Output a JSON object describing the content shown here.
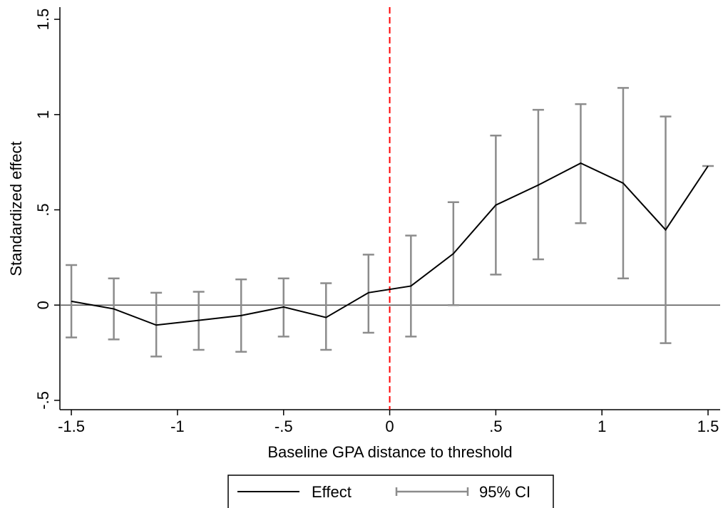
{
  "chart_data": {
    "type": "line",
    "x_label": "Baseline GPA distance to threshold",
    "y_label": "Standardized effect",
    "x": [
      -1.5,
      -1.3,
      -1.1,
      -0.9,
      -0.7,
      -0.5,
      -0.3,
      -0.1,
      0.1,
      0.3,
      0.5,
      0.7,
      0.9,
      1.1,
      1.3,
      1.5
    ],
    "series": [
      {
        "name": "Effect",
        "color": "#000000",
        "values": [
          0.02,
          -0.02,
          -0.105,
          -0.08,
          -0.055,
          -0.01,
          -0.065,
          0.065,
          0.1,
          0.27,
          0.525,
          0.63,
          0.745,
          0.64,
          0.395,
          0.73
        ]
      },
      {
        "name": "95% CI",
        "color": "#8c8c8c",
        "lower": [
          -0.17,
          -0.18,
          -0.27,
          -0.235,
          -0.245,
          -0.165,
          -0.235,
          -0.145,
          -0.165,
          0.0,
          0.16,
          0.24,
          0.43,
          0.14,
          -0.2,
          0.73
        ],
        "upper": [
          0.21,
          0.14,
          0.065,
          0.07,
          0.135,
          0.14,
          0.115,
          0.265,
          0.365,
          0.54,
          0.89,
          1.025,
          1.055,
          1.14,
          0.99,
          0.73
        ]
      }
    ],
    "xlim": [
      -1.554,
      1.557
    ],
    "ylim": [
      -0.549,
      1.564
    ],
    "xticks": [
      -1.5,
      -1,
      {
        "value": -0.5,
        "label": "-.5"
      },
      0,
      {
        "value": 0.5,
        "label": ".5"
      },
      1,
      1.5
    ],
    "yticks": [
      {
        "value": -0.5,
        "label": "-.5"
      },
      0,
      {
        "value": 0.5,
        "label": ".5"
      },
      1,
      1.5
    ],
    "reference_lines": {
      "x": 0,
      "x_color": "#ff0000",
      "y": 0,
      "y_color": "#555555"
    }
  }
}
